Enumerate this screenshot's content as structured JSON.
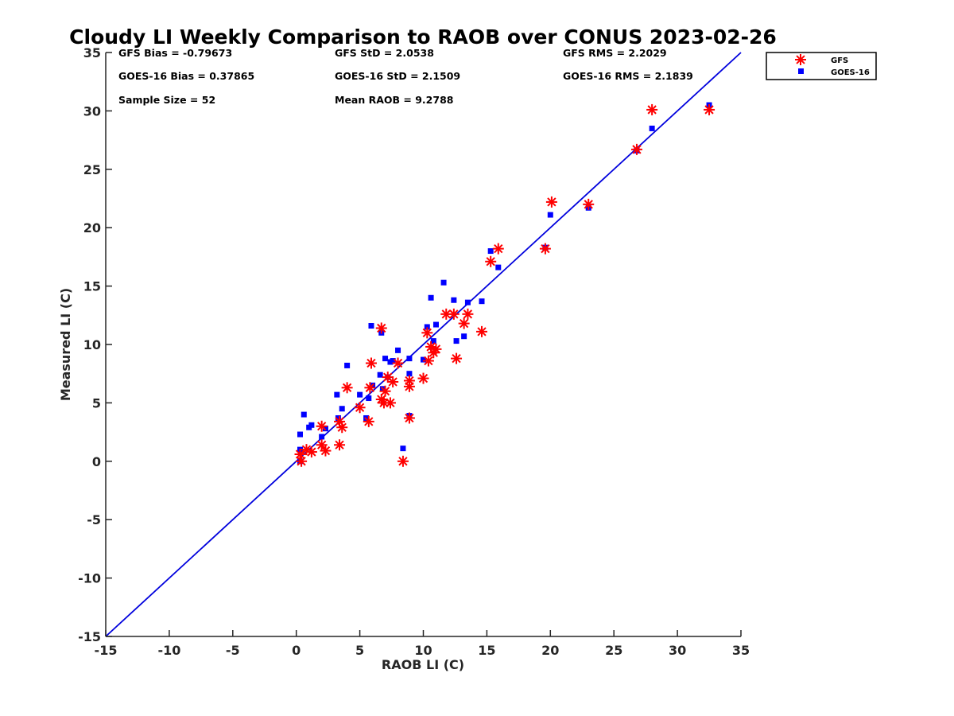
{
  "chart_data": {
    "type": "scatter",
    "title": "Cloudy LI Weekly Comparison to RAOB over CONUS 2023-02-26",
    "xlabel": "RAOB LI (C)",
    "ylabel": "Measured LI (C)",
    "xlim": [
      -15,
      35
    ],
    "ylim": [
      -15,
      35
    ],
    "xticks": [
      -15,
      -10,
      -5,
      0,
      5,
      10,
      15,
      20,
      25,
      30,
      35
    ],
    "yticks": [
      -15,
      -10,
      -5,
      0,
      5,
      10,
      15,
      20,
      25,
      30,
      35
    ],
    "xtick_labels": [
      "-15",
      "-10",
      "-5",
      "0",
      "5",
      "10",
      "15",
      "20",
      "25",
      "30",
      "35"
    ],
    "ytick_labels": [
      "-15",
      "-10",
      "-5",
      "0",
      "5",
      "10",
      "15",
      "20",
      "25",
      "30",
      "35"
    ],
    "grid": false,
    "legend_position": "top-right outside",
    "reference_line": {
      "type": "one-to-one",
      "color": "#0000dd"
    },
    "stats": [
      "GFS Bias = -0.79673",
      "GFS StD = 2.0538",
      "GFS RMS = 2.2029",
      "GOES-16 Bias = 0.37865",
      "GOES-16 StD = 2.1509",
      "GOES-16 RMS = 2.1839",
      "Sample Size = 52",
      "Mean RAOB = 9.2788"
    ],
    "series": [
      {
        "name": "GFS",
        "marker": "asterisk",
        "color": "#ff0000",
        "points": [
          [
            0.3,
            0.6
          ],
          [
            0.4,
            0.0
          ],
          [
            0.8,
            1.0
          ],
          [
            1.2,
            0.8
          ],
          [
            2.0,
            1.4
          ],
          [
            2.0,
            3.0
          ],
          [
            2.3,
            0.9
          ],
          [
            3.4,
            1.4
          ],
          [
            3.4,
            3.4
          ],
          [
            3.6,
            2.9
          ],
          [
            4.0,
            6.3
          ],
          [
            5.0,
            4.6
          ],
          [
            5.7,
            3.4
          ],
          [
            5.8,
            6.3
          ],
          [
            5.9,
            8.4
          ],
          [
            6.7,
            11.4
          ],
          [
            6.7,
            5.3
          ],
          [
            6.9,
            5.0
          ],
          [
            7.0,
            6.0
          ],
          [
            7.2,
            7.2
          ],
          [
            7.4,
            5.0
          ],
          [
            7.6,
            6.8
          ],
          [
            8.0,
            8.4
          ],
          [
            8.4,
            0.0
          ],
          [
            8.9,
            3.7
          ],
          [
            8.9,
            6.4
          ],
          [
            8.9,
            6.9
          ],
          [
            10.0,
            7.1
          ],
          [
            10.3,
            11.0
          ],
          [
            10.4,
            8.6
          ],
          [
            10.6,
            9.8
          ],
          [
            10.8,
            9.3
          ],
          [
            11.0,
            9.6
          ],
          [
            11.8,
            12.6
          ],
          [
            12.4,
            12.6
          ],
          [
            12.6,
            8.8
          ],
          [
            13.2,
            11.8
          ],
          [
            13.5,
            12.6
          ],
          [
            14.6,
            11.1
          ],
          [
            15.3,
            17.1
          ],
          [
            15.9,
            18.2
          ],
          [
            19.6,
            18.2
          ],
          [
            20.1,
            22.2
          ],
          [
            23.0,
            22.0
          ],
          [
            26.8,
            26.7
          ],
          [
            28.0,
            30.1
          ],
          [
            32.5,
            30.1
          ]
        ]
      },
      {
        "name": "GOES-16",
        "marker": "square",
        "color": "#0000ff",
        "points": [
          [
            0.3,
            2.3
          ],
          [
            0.3,
            0.0
          ],
          [
            0.3,
            1.0
          ],
          [
            0.6,
            4.0
          ],
          [
            1.0,
            2.9
          ],
          [
            1.2,
            3.1
          ],
          [
            2.0,
            2.1
          ],
          [
            2.3,
            2.8
          ],
          [
            3.2,
            5.7
          ],
          [
            3.3,
            3.7
          ],
          [
            3.6,
            4.5
          ],
          [
            4.0,
            8.2
          ],
          [
            5.0,
            5.7
          ],
          [
            5.5,
            3.7
          ],
          [
            5.7,
            5.4
          ],
          [
            5.9,
            11.6
          ],
          [
            6.0,
            6.5
          ],
          [
            6.6,
            7.4
          ],
          [
            6.7,
            11.0
          ],
          [
            6.8,
            6.2
          ],
          [
            7.0,
            8.8
          ],
          [
            7.2,
            7.2
          ],
          [
            7.4,
            8.5
          ],
          [
            7.6,
            8.6
          ],
          [
            8.0,
            9.5
          ],
          [
            8.4,
            1.1
          ],
          [
            8.9,
            3.9
          ],
          [
            8.9,
            7.5
          ],
          [
            8.9,
            8.8
          ],
          [
            10.0,
            8.7
          ],
          [
            10.3,
            11.5
          ],
          [
            10.6,
            14.0
          ],
          [
            10.8,
            10.3
          ],
          [
            11.0,
            11.7
          ],
          [
            11.6,
            15.3
          ],
          [
            12.4,
            13.8
          ],
          [
            12.6,
            10.3
          ],
          [
            13.2,
            10.7
          ],
          [
            13.5,
            13.6
          ],
          [
            14.6,
            13.7
          ],
          [
            15.3,
            18.0
          ],
          [
            15.9,
            16.6
          ],
          [
            19.6,
            18.3
          ],
          [
            20.0,
            21.1
          ],
          [
            23.0,
            21.7
          ],
          [
            26.8,
            26.6
          ],
          [
            28.0,
            28.5
          ],
          [
            32.5,
            30.5
          ]
        ]
      }
    ]
  }
}
